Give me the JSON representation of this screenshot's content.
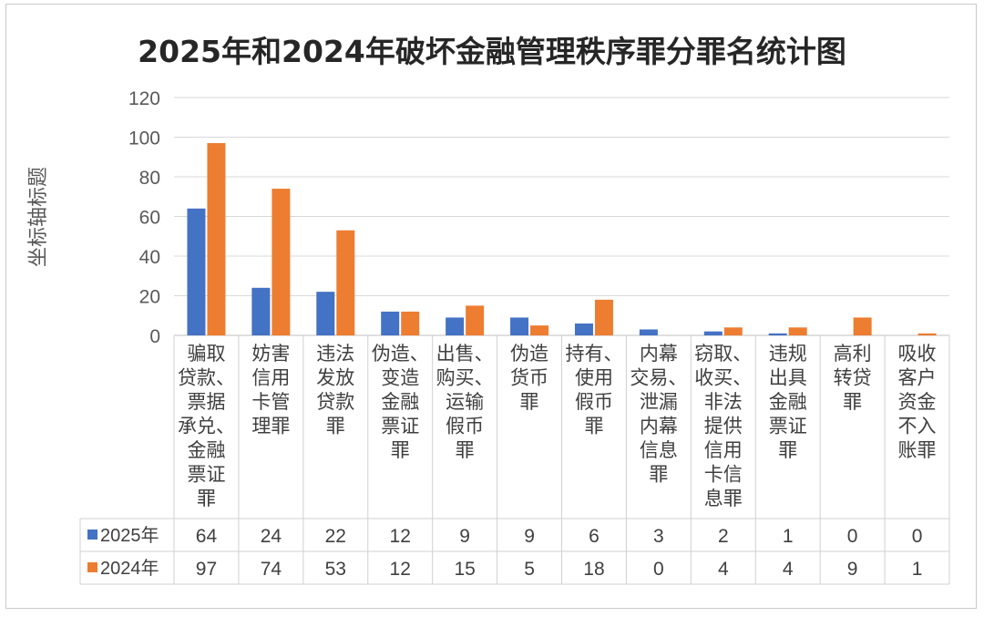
{
  "chart_data": {
    "type": "bar",
    "title": "2025年和2024年破坏金融管理秩序罪分罪名统计图",
    "ylabel": "坐标轴标题",
    "xlabel": "",
    "ylim": [
      0,
      120
    ],
    "yticks": [
      0,
      20,
      40,
      60,
      80,
      100,
      120
    ],
    "grid": true,
    "legend": "table",
    "categories": [
      "骗取贷款、票据承兑、金融票证罪",
      "妨害信用卡管理罪",
      "违法发放贷款罪",
      "伪造、变造金融票证罪",
      "出售、购买、运输假币罪",
      "伪造货币罪",
      "持有、使用假币罪",
      "内幕交易、泄漏内幕信息罪",
      "窃取、收买、非法提供信用卡信息罪",
      "违规出具金融票证罪",
      "高利转贷罪",
      "吸收客户资金不入账罪"
    ],
    "category_lines": [
      [
        "骗取",
        "贷款、",
        "票据",
        "承兑、",
        "金融",
        "票证",
        "罪"
      ],
      [
        "妨害",
        "信用",
        "卡管",
        "理罪"
      ],
      [
        "违法",
        "发放",
        "贷款",
        "罪"
      ],
      [
        "伪造、",
        "变造",
        "金融",
        "票证",
        "罪"
      ],
      [
        "出售、",
        "购买、",
        "运输",
        "假币",
        "罪"
      ],
      [
        "伪造",
        "货币",
        "罪"
      ],
      [
        "持有、",
        "使用",
        "假币",
        "罪"
      ],
      [
        "内幕",
        "交易、",
        "泄漏",
        "内幕",
        "信息",
        "罪"
      ],
      [
        "窃取、",
        "收买、",
        "非法",
        "提供",
        "信用",
        "卡信",
        "息罪"
      ],
      [
        "违规",
        "出具",
        "金融",
        "票证",
        "罪"
      ],
      [
        "高利",
        "转贷",
        "罪"
      ],
      [
        "吸收",
        "客户",
        "资金",
        "不入",
        "账罪"
      ]
    ],
    "series": [
      {
        "name": "2025年",
        "color": "#4472C4",
        "values": [
          64,
          24,
          22,
          12,
          9,
          9,
          6,
          3,
          2,
          1,
          0,
          0
        ]
      },
      {
        "name": "2024年",
        "color": "#ED7D31",
        "values": [
          97,
          74,
          53,
          12,
          15,
          5,
          18,
          0,
          4,
          4,
          9,
          1
        ]
      }
    ]
  }
}
